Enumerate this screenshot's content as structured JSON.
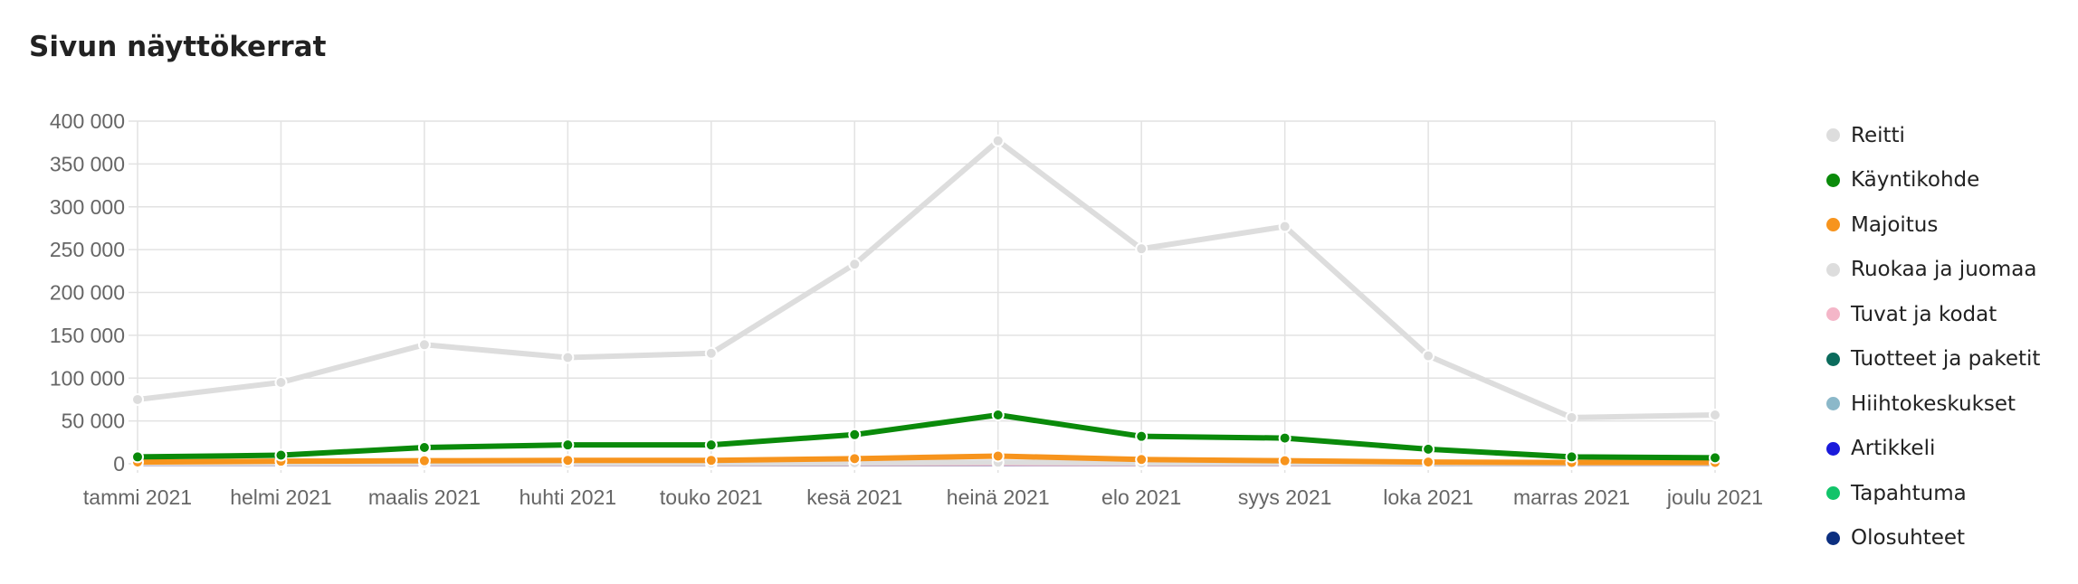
{
  "title": "Sivun näyttökerrat",
  "chart_data": {
    "type": "line",
    "categories": [
      "tammi 2021",
      "helmi 2021",
      "maalis 2021",
      "huhti 2021",
      "touko 2021",
      "kesä 2021",
      "heinä 2021",
      "elo 2021",
      "syys 2021",
      "loka 2021",
      "marras 2021",
      "joulu 2021"
    ],
    "ylim": [
      0,
      400000
    ],
    "yticks": [
      0,
      50000,
      100000,
      150000,
      200000,
      250000,
      300000,
      350000,
      400000
    ],
    "ytick_labels": [
      "0",
      "50 000",
      "100 000",
      "150 000",
      "200 000",
      "250 000",
      "300 000",
      "350 000",
      "400 000"
    ],
    "grid": true,
    "legend_position": "right",
    "series": [
      {
        "name": "Reitti",
        "color": "#dddddd",
        "values": [
          75000,
          95000,
          139000,
          124000,
          129000,
          233000,
          377000,
          251000,
          277000,
          126000,
          54000,
          57000
        ]
      },
      {
        "name": "Käyntikohde",
        "color": "#0a8a0a",
        "values": [
          8000,
          10000,
          19000,
          22000,
          22000,
          34000,
          57000,
          32000,
          30000,
          17000,
          8000,
          7000
        ]
      },
      {
        "name": "Majoitus",
        "color": "#f7941d",
        "values": [
          2000,
          3000,
          3500,
          4000,
          4000,
          6000,
          9000,
          5000,
          3500,
          2000,
          1500,
          1500
        ]
      },
      {
        "name": "Ruokaa ja juomaa",
        "color": "#dddddd",
        "values": [
          500,
          500,
          800,
          800,
          800,
          1200,
          1800,
          1000,
          900,
          500,
          400,
          400
        ]
      },
      {
        "name": "Tuvat ja kodat",
        "color": "#f4b6c8",
        "values": [
          200,
          200,
          300,
          300,
          300,
          400,
          500,
          300,
          300,
          200,
          200,
          200
        ]
      },
      {
        "name": "Tuotteet ja paketit",
        "color": "#0b6b5c",
        "values": [
          600,
          500,
          600,
          500,
          400,
          400,
          500,
          400,
          400,
          400,
          500,
          500
        ]
      },
      {
        "name": "Hiihtokeskukset",
        "color": "#8bb8c9",
        "values": [
          300,
          300,
          300,
          200,
          100,
          100,
          100,
          100,
          100,
          100,
          200,
          300
        ]
      },
      {
        "name": "Artikkeli",
        "color": "#1a1adb",
        "values": [
          100,
          100,
          100,
          100,
          100,
          100,
          100,
          100,
          100,
          100,
          100,
          100
        ]
      },
      {
        "name": "Tapahtuma",
        "color": "#12c46a",
        "values": [
          100,
          100,
          100,
          100,
          100,
          100,
          100,
          100,
          100,
          100,
          100,
          100
        ]
      },
      {
        "name": "Olosuhteet",
        "color": "#0c2f80",
        "values": [
          50,
          50,
          50,
          50,
          50,
          50,
          50,
          50,
          50,
          50,
          50,
          50
        ]
      }
    ]
  }
}
